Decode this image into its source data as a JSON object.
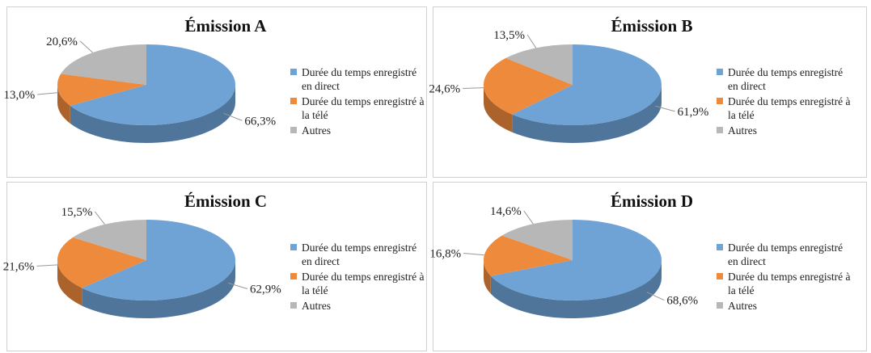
{
  "chart_data": [
    {
      "type": "pie",
      "title": "Émission A",
      "categories": [
        "Durée du temps enregistré en direct",
        "Durée du temps enregistré à la télé",
        "Autres"
      ],
      "values": [
        66.3,
        13.0,
        20.6
      ],
      "value_labels": [
        "66,3%",
        "13,0%",
        "20,6%"
      ],
      "colors": [
        "#6fa3d6",
        "#ed8a3c",
        "#b7b7b7"
      ]
    },
    {
      "type": "pie",
      "title": "Émission B",
      "categories": [
        "Durée du temps enregistré en direct",
        "Durée du temps enregistré à la télé",
        "Autres"
      ],
      "values": [
        61.9,
        24.6,
        13.5
      ],
      "value_labels": [
        "61,9%",
        "24,6%",
        "13,5%"
      ],
      "colors": [
        "#6fa3d6",
        "#ed8a3c",
        "#b7b7b7"
      ]
    },
    {
      "type": "pie",
      "title": "Émission C",
      "categories": [
        "Durée du temps enregistré en direct",
        "Durée du temps enregistré à la télé",
        "Autres"
      ],
      "values": [
        62.9,
        21.6,
        15.5
      ],
      "value_labels": [
        "62,9%",
        "21,6%",
        "15,5%"
      ],
      "colors": [
        "#6fa3d6",
        "#ed8a3c",
        "#b7b7b7"
      ]
    },
    {
      "type": "pie",
      "title": "Émission D",
      "categories": [
        "Durée du temps enregistré en direct",
        "Durée du temps enregistré à la télé",
        "Autres"
      ],
      "values": [
        68.6,
        16.8,
        14.6
      ],
      "value_labels": [
        "68,6%",
        "16,8%",
        "14,6%"
      ],
      "colors": [
        "#6fa3d6",
        "#ed8a3c",
        "#b7b7b7"
      ]
    }
  ]
}
